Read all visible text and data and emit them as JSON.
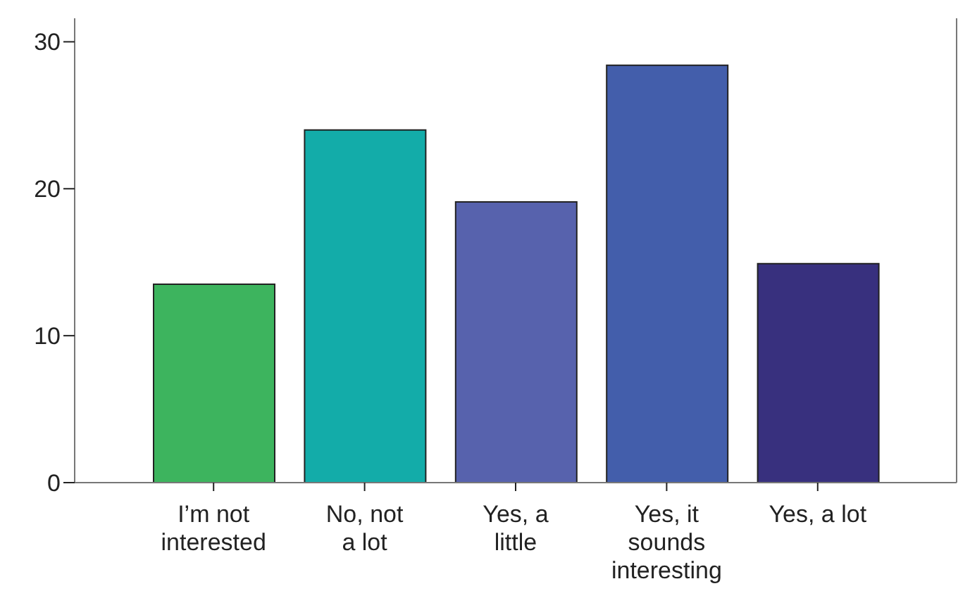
{
  "chart_data": {
    "type": "bar",
    "categories": [
      "I’m not\ninterested",
      "No, not\na lot",
      "Yes, a\nlittle",
      "Yes, it\nsounds\ninteresting",
      "Yes, a lot"
    ],
    "values": [
      13.5,
      24.0,
      19.1,
      28.4,
      14.9
    ],
    "colors": [
      "#3db45e",
      "#13aca9",
      "#5762ad",
      "#435eab",
      "#38307e"
    ],
    "ylim": [
      0,
      31.6
    ],
    "yticks": [
      0,
      10,
      20,
      30
    ],
    "grid": false,
    "legend": false
  }
}
